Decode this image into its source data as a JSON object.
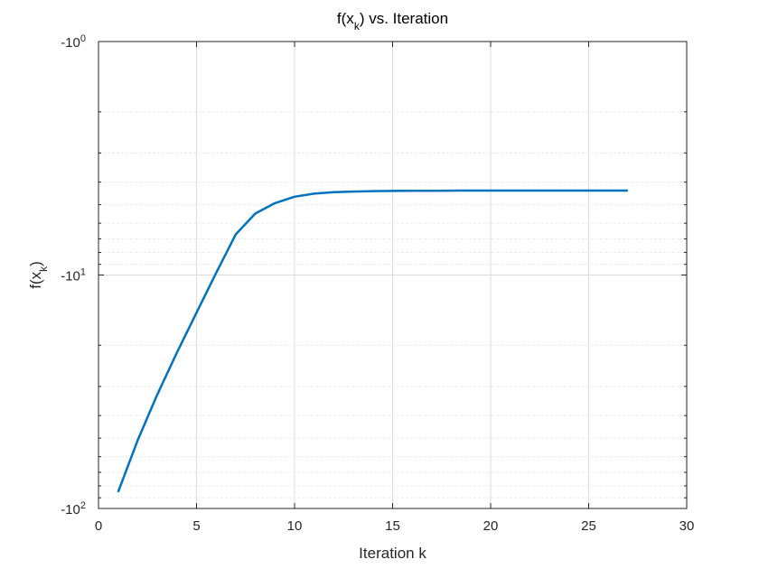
{
  "chart_data": {
    "type": "line",
    "title": {
      "base": "f(x",
      "sub": "k",
      "rest": ") vs. Iteration"
    },
    "xlabel": "Iteration k",
    "ylabel": {
      "base": "f(x",
      "sub": "k",
      "rest": ")"
    },
    "xlim": [
      0,
      30
    ],
    "xticks": [
      "0",
      "5",
      "10",
      "15",
      "20",
      "25",
      "30"
    ],
    "xtick_values": [
      0,
      5,
      10,
      15,
      20,
      25,
      30
    ],
    "ylim": [
      -100,
      -1
    ],
    "yscale": "log (negative values)",
    "yticks": [
      {
        "value": -1,
        "base": "-10",
        "exp": "0"
      },
      {
        "value": -10,
        "base": "-10",
        "exp": "1"
      },
      {
        "value": -100,
        "base": "-10",
        "exp": "2"
      }
    ],
    "grid": true,
    "series": [
      {
        "color": "#0072BD",
        "x": [
          1,
          2,
          3,
          4,
          5,
          6,
          7,
          8,
          9,
          10,
          11,
          12,
          13,
          14,
          15,
          16,
          17,
          18,
          19,
          20,
          21,
          22,
          23,
          24,
          25,
          27
        ],
        "y": [
          -85,
          -51,
          -32.5,
          -21.5,
          -14.5,
          -9.8,
          -6.7,
          -5.45,
          -4.92,
          -4.62,
          -4.48,
          -4.42,
          -4.39,
          -4.37,
          -4.365,
          -4.36,
          -4.355,
          -4.352,
          -4.35,
          -4.35,
          -4.35,
          -4.35,
          -4.35,
          -4.35,
          -4.35,
          -4.35
        ]
      }
    ]
  }
}
